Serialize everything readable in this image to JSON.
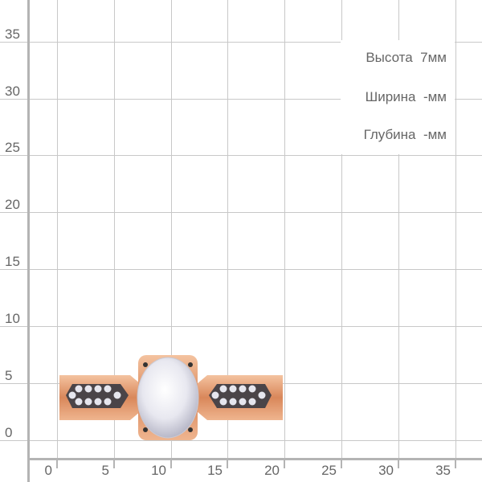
{
  "y_ticks": [
    "35",
    "30",
    "25",
    "20",
    "15",
    "10",
    "5",
    "0"
  ],
  "x_ticks": [
    "0",
    "5",
    "10",
    "15",
    "20",
    "25",
    "30",
    "35"
  ],
  "specs": {
    "height": "Высота  7мм",
    "width": "Ширина  -мм",
    "depth": "Глубина  -мм"
  },
  "colors": {
    "gold": "#e8a47c",
    "grid": "#c8c8c8",
    "axis": "#b4b4b4",
    "text": "#666666"
  }
}
